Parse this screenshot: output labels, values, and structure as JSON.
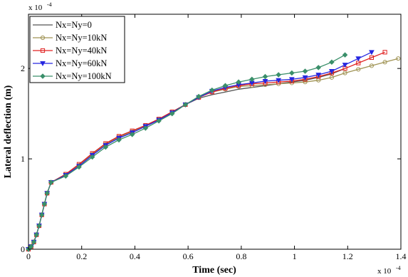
{
  "chart_data": {
    "type": "line",
    "title": "",
    "xlabel": "Time (sec)",
    "ylabel": "Lateral deflection (m)",
    "x_multiplier": {
      "base": "x 10",
      "exponent": "-4"
    },
    "y_multiplier": {
      "base": "x 10",
      "exponent": "-4"
    },
    "xlim": [
      0,
      1.4
    ],
    "ylim": [
      0,
      2.6
    ],
    "xticks": [
      0,
      0.2,
      0.4,
      0.6,
      0.8,
      1,
      1.2,
      1.4
    ],
    "xtick_labels": [
      "0",
      "0.2",
      "0.4",
      "0.6",
      "0.8",
      "1",
      "1.2",
      "1.4"
    ],
    "yticks": [
      0,
      1,
      2
    ],
    "ytick_labels": [
      "0",
      "1",
      "2"
    ],
    "legend_position": "top-left",
    "grid": false,
    "series": [
      {
        "name": "Nx=Ny=0",
        "color": "#555555",
        "marker": "none",
        "x": [
          0,
          0.01,
          0.02,
          0.03,
          0.04,
          0.05,
          0.06,
          0.07,
          0.085,
          0.14,
          0.19,
          0.24,
          0.29,
          0.34,
          0.39,
          0.44,
          0.49,
          0.54,
          0.59,
          0.64,
          0.69,
          0.74,
          0.79,
          0.84,
          0.89,
          0.94,
          0.99,
          1.04,
          1.09,
          1.14,
          1.19
        ],
        "y": [
          0,
          0.03,
          0.08,
          0.16,
          0.26,
          0.38,
          0.5,
          0.62,
          0.74,
          0.83,
          0.94,
          1.06,
          1.17,
          1.25,
          1.31,
          1.37,
          1.44,
          1.52,
          1.6,
          1.67,
          1.71,
          1.74,
          1.77,
          1.79,
          1.81,
          1.83,
          1.85,
          1.87,
          1.9,
          1.94,
          2.0
        ]
      },
      {
        "name": "Nx=Ny=10kN",
        "color": "#a09455",
        "marker": "circle",
        "x": [
          0,
          0.01,
          0.02,
          0.03,
          0.04,
          0.05,
          0.06,
          0.07,
          0.085,
          0.14,
          0.19,
          0.24,
          0.29,
          0.34,
          0.39,
          0.44,
          0.49,
          0.54,
          0.59,
          0.64,
          0.69,
          0.74,
          0.79,
          0.84,
          0.89,
          0.94,
          0.99,
          1.04,
          1.09,
          1.14,
          1.19,
          1.24,
          1.29,
          1.34,
          1.39
        ],
        "y": [
          0,
          0.03,
          0.08,
          0.16,
          0.26,
          0.38,
          0.5,
          0.62,
          0.74,
          0.83,
          0.93,
          1.05,
          1.16,
          1.24,
          1.3,
          1.37,
          1.44,
          1.52,
          1.6,
          1.68,
          1.74,
          1.77,
          1.8,
          1.81,
          1.82,
          1.83,
          1.84,
          1.85,
          1.87,
          1.9,
          1.95,
          1.99,
          2.03,
          2.07,
          2.11
        ]
      },
      {
        "name": "Nx=Ny=40kN",
        "color": "#e02020",
        "marker": "square",
        "x": [
          0,
          0.01,
          0.02,
          0.03,
          0.04,
          0.05,
          0.06,
          0.07,
          0.085,
          0.14,
          0.19,
          0.24,
          0.29,
          0.34,
          0.39,
          0.44,
          0.49,
          0.54,
          0.59,
          0.64,
          0.69,
          0.74,
          0.79,
          0.84,
          0.89,
          0.94,
          0.99,
          1.04,
          1.09,
          1.14,
          1.19,
          1.24,
          1.29,
          1.34
        ],
        "y": [
          0,
          0.03,
          0.08,
          0.16,
          0.26,
          0.38,
          0.5,
          0.62,
          0.74,
          0.83,
          0.94,
          1.06,
          1.17,
          1.25,
          1.31,
          1.37,
          1.44,
          1.52,
          1.6,
          1.68,
          1.74,
          1.78,
          1.81,
          1.83,
          1.84,
          1.85,
          1.86,
          1.88,
          1.91,
          1.95,
          2.0,
          2.06,
          2.12,
          2.18
        ]
      },
      {
        "name": "Nx=Ny=60kN",
        "color": "#2626e0",
        "marker": "triangle-down",
        "x": [
          0,
          0.01,
          0.02,
          0.03,
          0.04,
          0.05,
          0.06,
          0.07,
          0.085,
          0.14,
          0.19,
          0.24,
          0.29,
          0.34,
          0.39,
          0.44,
          0.49,
          0.54,
          0.59,
          0.64,
          0.69,
          0.74,
          0.79,
          0.84,
          0.89,
          0.94,
          0.99,
          1.04,
          1.09,
          1.14,
          1.19,
          1.24,
          1.29
        ],
        "y": [
          0,
          0.03,
          0.08,
          0.16,
          0.26,
          0.38,
          0.5,
          0.62,
          0.74,
          0.82,
          0.92,
          1.04,
          1.15,
          1.23,
          1.29,
          1.36,
          1.43,
          1.51,
          1.6,
          1.68,
          1.75,
          1.79,
          1.82,
          1.84,
          1.86,
          1.87,
          1.88,
          1.9,
          1.93,
          1.97,
          2.04,
          2.11,
          2.18
        ]
      },
      {
        "name": "Nx=Ny=100kN",
        "color": "#3a8f6a",
        "marker": "diamond",
        "x": [
          0,
          0.01,
          0.02,
          0.03,
          0.04,
          0.05,
          0.06,
          0.07,
          0.085,
          0.14,
          0.19,
          0.24,
          0.29,
          0.34,
          0.39,
          0.44,
          0.49,
          0.54,
          0.59,
          0.64,
          0.69,
          0.74,
          0.79,
          0.84,
          0.89,
          0.94,
          0.99,
          1.04,
          1.09,
          1.14,
          1.19
        ],
        "y": [
          0,
          0.03,
          0.08,
          0.16,
          0.26,
          0.38,
          0.5,
          0.62,
          0.74,
          0.81,
          0.91,
          1.02,
          1.13,
          1.21,
          1.27,
          1.34,
          1.42,
          1.5,
          1.6,
          1.69,
          1.76,
          1.81,
          1.85,
          1.88,
          1.91,
          1.93,
          1.95,
          1.97,
          2.01,
          2.07,
          2.15
        ]
      }
    ]
  }
}
